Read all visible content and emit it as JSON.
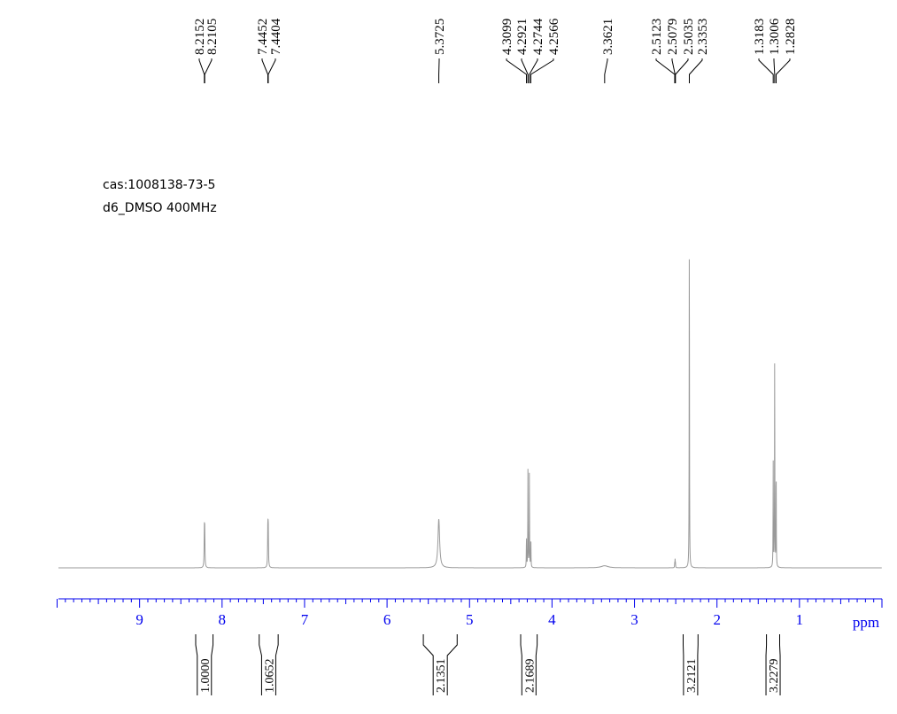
{
  "chart_data": {
    "type": "line",
    "title": "",
    "annotations": [
      "cas:1008138-73-5",
      "d6_DMSO 400MHz"
    ],
    "xlabel": "ppm",
    "xlim": [
      10,
      0
    ],
    "x_reversed": true,
    "x_ticks": [
      "9",
      "8",
      "7",
      "6",
      "5",
      "4",
      "3",
      "2",
      "1"
    ],
    "grid": false,
    "colors": {
      "spectrum": "#9a9a9a",
      "axis": "#0000ee",
      "labels": "#000000"
    },
    "peaks": [
      {
        "ppm": 8.2152,
        "label": "8.2152",
        "intensity": 0.1,
        "width": 0.003
      },
      {
        "ppm": 8.2105,
        "label": "8.2105",
        "intensity": 0.1,
        "width": 0.003
      },
      {
        "ppm": 7.4452,
        "label": "7.4452",
        "intensity": 0.11,
        "width": 0.003
      },
      {
        "ppm": 7.4404,
        "label": "7.4404",
        "intensity": 0.11,
        "width": 0.003
      },
      {
        "ppm": 5.3725,
        "label": "5.3725",
        "intensity": 0.14,
        "width": 0.012
      },
      {
        "ppm": 4.3099,
        "label": "4.3099",
        "intensity": 0.09,
        "width": 0.002
      },
      {
        "ppm": 4.2921,
        "label": "4.2921",
        "intensity": 0.28,
        "width": 0.002
      },
      {
        "ppm": 4.2744,
        "label": "4.2744",
        "intensity": 0.28,
        "width": 0.002
      },
      {
        "ppm": 4.2566,
        "label": "4.2566",
        "intensity": 0.09,
        "width": 0.002
      },
      {
        "ppm": 3.3621,
        "label": "3.3621",
        "intensity": 0.006,
        "width": 0.05
      },
      {
        "ppm": 2.5123,
        "label": "2.5123",
        "intensity": 0.012,
        "width": 0.002
      },
      {
        "ppm": 2.5079,
        "label": "2.5079",
        "intensity": 0.022,
        "width": 0.002
      },
      {
        "ppm": 2.5035,
        "label": "2.5035",
        "intensity": 0.012,
        "width": 0.002
      },
      {
        "ppm": 2.3353,
        "label": "2.3353",
        "intensity": 1.0,
        "width": 0.002
      },
      {
        "ppm": 1.3183,
        "label": "1.3183",
        "intensity": 0.3,
        "width": 0.002
      },
      {
        "ppm": 1.3006,
        "label": "1.3006",
        "intensity": 0.62,
        "width": 0.002
      },
      {
        "ppm": 1.2828,
        "label": "1.2828",
        "intensity": 0.3,
        "width": 0.002
      }
    ],
    "integrals": [
      {
        "from": 8.32,
        "to": 8.11,
        "value": "1.0000"
      },
      {
        "from": 7.55,
        "to": 7.32,
        "value": "1.0652"
      },
      {
        "from": 5.56,
        "to": 5.15,
        "value": "2.1351"
      },
      {
        "from": 4.38,
        "to": 4.18,
        "value": "2.1689"
      },
      {
        "from": 2.41,
        "to": 2.23,
        "value": "3.2121"
      },
      {
        "from": 1.4,
        "to": 1.24,
        "value": "3.2279"
      }
    ]
  }
}
